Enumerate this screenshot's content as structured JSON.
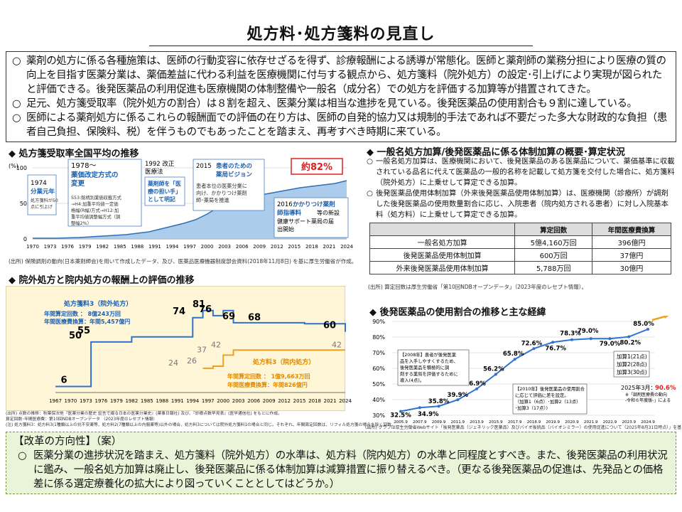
{
  "page": {
    "title": "処方料･処方箋料の見直し",
    "intro": [
      "薬剤の処方に係る各種施策は、医師の行動変容に依存せざるを得ず、診療報酬による誘導が常態化。医師と薬剤師の業務分担により医療の質の向上を目指す医薬分業は、薬価差益に代わる利益を医療機関に付与する観点から、処方箋料（院外処方）の設定･引上げにより実現が図られたと評価できる。後発医薬品の利用促進も医療機関の体制整備や一般名（成分名）での処方を評価する加算等が措置されてきた。",
      "足元、処方箋受取率（院外処方の割合）は８割を超え、医薬分業は相当な進捗を見ている。後発医薬品の使用割合も９割に達している。",
      "医師による薬剤処方に係るこれらの報酬面での評価の在り方は、医師の自発的協力又は規制的手法であれば不要だった多大な財政的な負担（患者自己負担、保険料、税）を伴うものでもあったことを踏まえ、再考すべき時期に来ている。"
    ],
    "bullet": "○"
  },
  "chart1": {
    "title": "◆ 処方箋受取率全国平均の推移",
    "ylabel": "(%)",
    "yticks": [
      "100",
      "50",
      "0"
    ],
    "xticks": [
      "1970",
      "1973",
      "1976",
      "1979",
      "1982",
      "1985",
      "1988",
      "1991",
      "1994",
      "1997",
      "2000",
      "2003",
      "2006",
      "2009",
      "2012",
      "2015",
      "2018",
      "2021",
      "2024"
    ],
    "callout_82": "約82%",
    "ann_1974_year": "1974",
    "ann_1974_head": "分業元年",
    "ann_1974_body": [
      "処方箋料が50",
      "点に引上げ"
    ],
    "ann_1978_year": "1978～",
    "ann_1978_head": [
      "薬価改定方式の",
      "変更"
    ],
    "ann_1978_body": [
      "S53:銘柄別薬価収載方式",
      "→H4:加重平均値一定価",
      "格幅(R幅)方式→H12:加",
      "重平均値調整幅方式（調",
      "整幅2%）"
    ],
    "ann_1992_head": [
      "1992 改正",
      "医療法"
    ],
    "ann_1992_box": [
      "薬剤師を「医",
      "療の担い手」",
      "として明記"
    ],
    "ann_2015_year": "2015 ",
    "ann_2015_head": [
      "患者のための",
      "薬局ビジョン"
    ],
    "ann_2015_body": [
      "患者本位の医薬分業に",
      "向け、かかりつけ薬剤",
      "師･薬局を推進"
    ],
    "ann_2016_year": "2016 ",
    "ann_2016_head": [
      "かかりつけ薬剤",
      "師指導料"
    ],
    "ann_2016_body": [
      "等の新設",
      "健康サポート薬局の届",
      "出開始"
    ],
    "source": "(出所) 保険調剤の動向(日本薬剤師会)を用いて作成したデータ、及び、医薬品医療機器制度部会資料(2018年11月8日) を基に厚生労働省が作成。"
  },
  "chart2": {
    "title": "◆ 院外処方と院内処方の報酬上の評価の推移",
    "xticks": [
      "1967",
      "1970",
      "1973",
      "1976",
      "1979",
      "1982",
      "1985",
      "1988",
      "1991",
      "1994",
      "1997",
      "2000",
      "2003",
      "2006",
      "2009",
      "2012",
      "2015",
      "2018",
      "2021",
      "2024"
    ],
    "out_title": "処方箋料3（院外処方）",
    "out_lines": [
      "年間算定回数 ： 8億243万回",
      "年間医療費換算：年間5,457億円"
    ],
    "in_title": "処方料3（院内処方）",
    "in_lines": [
      "年間算定回数 ： 1億9,663万回",
      "年間医療費換算：年間826億円"
    ],
    "out_labels": [
      "6",
      "50",
      "55",
      "74",
      "81",
      "76",
      "69",
      "68",
      "60"
    ],
    "in_labels": [
      "24",
      "26",
      "37",
      "42",
      "42"
    ],
    "notes": [
      "(出所) 点数の推移：秋葉保次他『医薬分業の歴史 証言で綴る日本の医薬分業史』(薬事日報社) 及び、『診療点数早見表』(医学通信社) をもとに作成。",
      "算定回数･年間医療費：第10回NDBオープンデータ （2023年度のレセプト情報）",
      "(注) 処方箋料3：処方料3(1種類以上の抗不安薬等、処方料2(7種類以上の内服薬等)以外の場合、処方料3については院外処方箋料1の場合と同じ。それぞれ、年間算定回数は、リフィル処方箋の場合を除く回数。"
    ]
  },
  "right_panel": {
    "title": "◆ 一般名処方加算/後発医薬品に係る体制加算の概要･算定状況",
    "items": [
      "一般名処方加算は、医療機関において、後発医薬品のある医薬品について、薬価基準に収載されている品名に代えて医薬品の一般的名称を記載して処方箋を交付した場合に、処方箋料（院外処方）に上乗せして算定できる加算。",
      "後発医薬品使用体制加算（外来後発医薬品使用体制加算）は、医療機関（診療所）が調剤した後発医薬品の使用数量割合に応じ、入院患者（院内処方される患者）に対し入院基本料（処方料）に上乗せして算定できる加算。"
    ],
    "bullet": "○",
    "table": {
      "headers": [
        "",
        "算定回数",
        "年間医療費換算"
      ],
      "rows": [
        [
          "一般名処方加算",
          "5億4,160万回",
          "396億円"
        ],
        [
          "後発医薬品使用体制加算",
          "600万回",
          "37億円"
        ],
        [
          "外来後発医薬品使用体制加算",
          "5,788万回",
          "30億円"
        ]
      ]
    },
    "source": "(出所) 算定回数は厚生労働省「第10回NDBオープンデータ」（2023年度のレセプト情報）。"
  },
  "chart3": {
    "title": "◆ 後発医薬品の使用割合の推移と主な経緯",
    "yticks": [
      "90%",
      "80%",
      "70%",
      "60%",
      "50%",
      "40%",
      "30%"
    ],
    "xticks": [
      "2005.9",
      "2007.9",
      "2009.9",
      "2011.9",
      "2013.9",
      "2015.9",
      "2017.9",
      "2018.9",
      "2019.9",
      "2020.9",
      "2021.9",
      "2022.9",
      "2023.9",
      "2024.9"
    ],
    "labels": [
      "32.5%",
      "34.9%",
      "35.8%",
      "39.9%",
      "46.9%",
      "56.2%",
      "65.8%",
      "72.6%",
      "76.7%",
      "78.3%",
      "79.0%",
      "79.0%",
      "80.2%",
      "85.0%"
    ],
    "box_2008": [
      "【2008年】患者が後発医薬",
      "品を入手しやすくするため、",
      "後発医薬品を積極的に調",
      "剤する薬局を評価するために",
      "導入(4点)。"
    ],
    "box_2010": [
      "【2010年】後発医薬品の使用割合",
      "に応じて評価に差を設定。",
      "（加算1（6点）･加算2（13点）",
      "･加算3（17点）)"
    ],
    "box_kasan": [
      "加算1(21点)",
      "加算2(28点)",
      "加算3(30点)"
    ],
    "march_label": "2025年3月：",
    "march_value": "90.6%",
    "march_note": [
      "※「調剤医療費の動向",
      "-令和６年度版-」による"
    ],
    "source": "(出所) グラフは厚生労働省Webサイト「後発医薬品（ジェネリック医薬品）及びバイオ後続品（バイオシミラー）の使用促進について（2025年8月31日時点）」を基に作成"
  },
  "reform": {
    "header": "【改革の方向性】（案）",
    "bullet": "○",
    "text": "医薬分業の進捗状況を踏まえ、処方箋料（院外処方）の水準は、処方料（院内処方）の水準と同程度とすべき。また、後発医薬品の利用状況に鑑み、一般名処方加算は廃止し、後発医薬品に係る体制加算は減算措置に振り替えるべき。（更なる後発医薬品の促進は、先発品との価格差に係る選定療養化の拡大により図っていくこととしてはどうか。）"
  },
  "chart_data": [
    {
      "type": "area",
      "title": "処方箋受取率全国平均の推移",
      "ylabel": "(%)",
      "ylim": [
        0,
        100
      ],
      "x": [
        1970,
        1974,
        1978,
        1982,
        1986,
        1990,
        1992,
        1994,
        1996,
        1998,
        2000,
        2002,
        2004,
        2006,
        2008,
        2010,
        2012,
        2014,
        2016,
        2018,
        2020,
        2022,
        2024
      ],
      "values": [
        1,
        1,
        2,
        4,
        6,
        10,
        14,
        18,
        22,
        27,
        35,
        45,
        52,
        56,
        60,
        63,
        66,
        69,
        72,
        74,
        76,
        78,
        82
      ]
    },
    {
      "type": "line",
      "title": "院外処方と院内処方の報酬上の評価の推移",
      "series": [
        {
          "name": "処方箋料3（院外処方）",
          "x": [
            1967,
            1974,
            1982,
            1994,
            1996,
            1998,
            2000,
            2002,
            2016,
            2024
          ],
          "values": [
            6,
            50,
            55,
            74,
            81,
            76,
            81,
            69,
            68,
            60
          ]
        },
        {
          "name": "処方料3（院内処方）",
          "x": [
            1996,
            1998,
            2000,
            2002,
            2024
          ],
          "values": [
            24,
            26,
            37,
            42,
            42
          ]
        }
      ],
      "xlim": [
        1967,
        2024
      ],
      "ylim": [
        0,
        90
      ]
    },
    {
      "type": "line",
      "title": "後発医薬品の使用割合の推移と主な経緯",
      "categories": [
        "2005.9",
        "2007.9",
        "2009.9",
        "2011.9",
        "2013.9",
        "2015.9",
        "2017.9",
        "2018.9",
        "2019.9",
        "2020.9",
        "2021.9",
        "2022.9",
        "2023.9",
        "2024.9"
      ],
      "values": [
        32.5,
        34.9,
        35.8,
        39.9,
        46.9,
        56.2,
        65.8,
        72.6,
        76.7,
        78.3,
        79.0,
        79.0,
        80.2,
        85.0
      ],
      "ylim": [
        30,
        90
      ]
    }
  ]
}
